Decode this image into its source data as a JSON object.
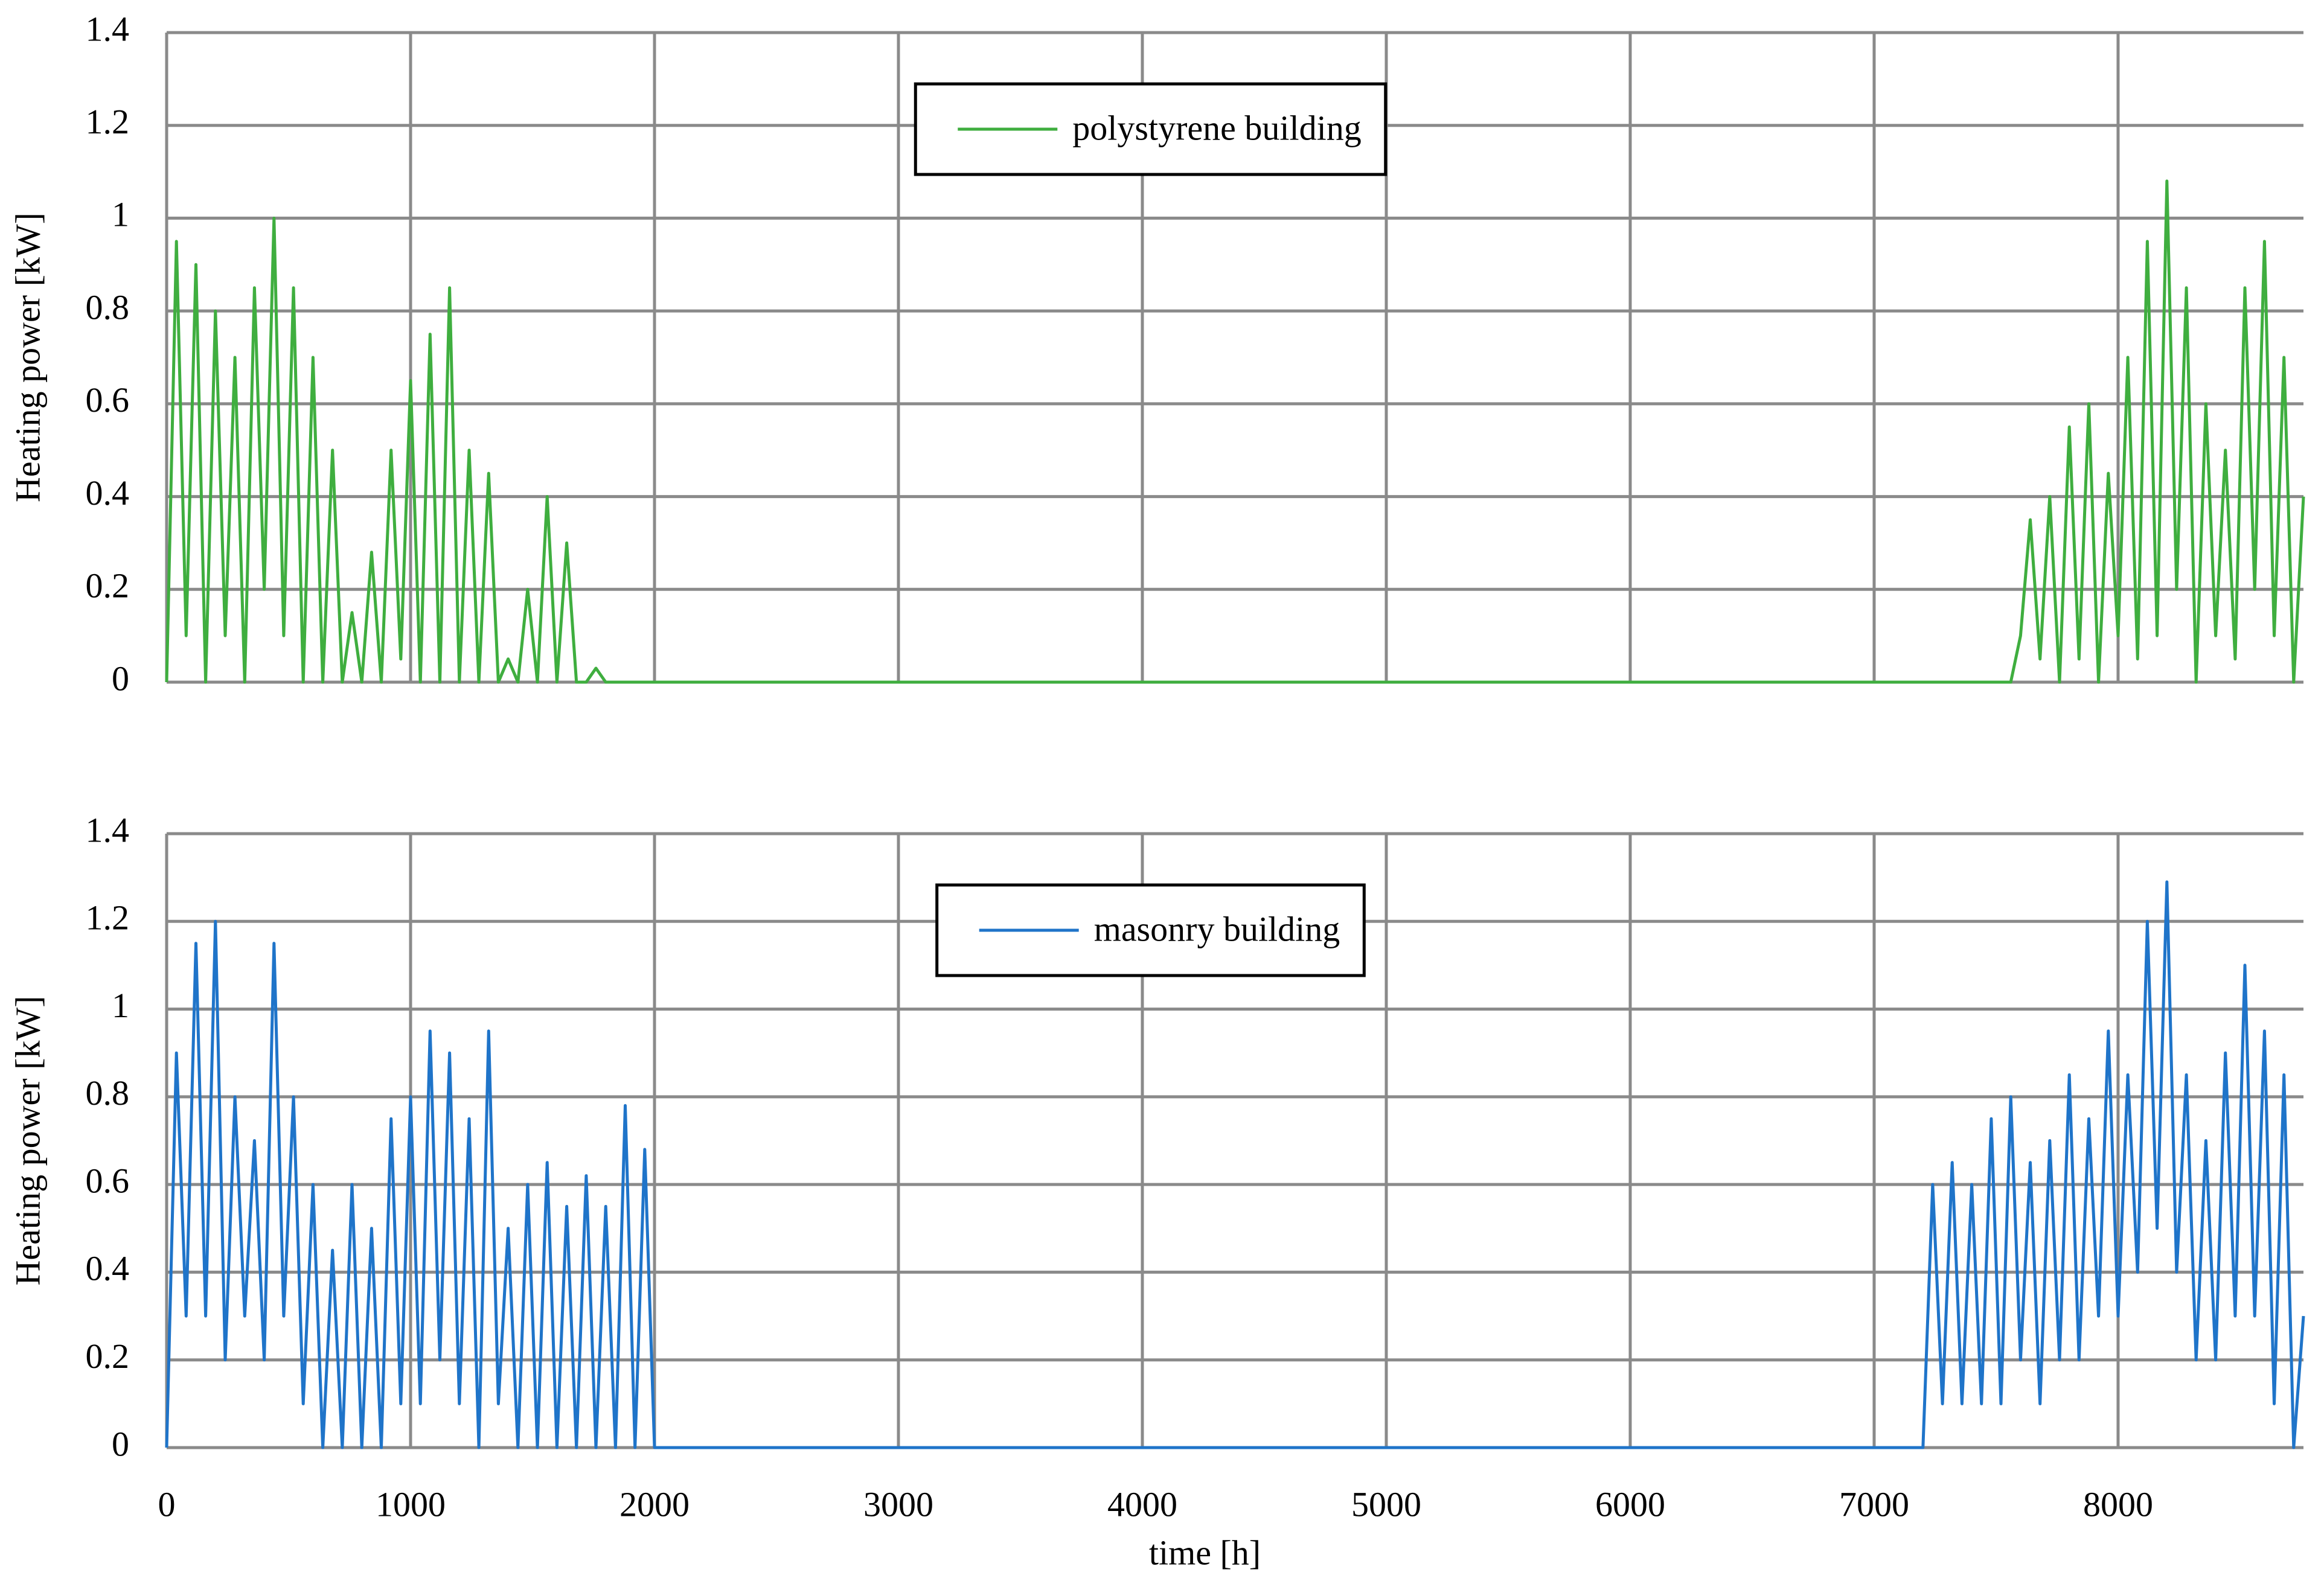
{
  "chart_data": [
    {
      "type": "line",
      "ylabel": "Heating power [kW]",
      "legend": "upper center",
      "grid": true,
      "show_xtick_labels": false,
      "xlim": [
        0,
        8760
      ],
      "ylim": [
        0,
        1.4
      ],
      "xticks": [
        0,
        1000,
        2000,
        3000,
        4000,
        5000,
        6000,
        7000,
        8000
      ],
      "yticks": [
        0,
        0.2,
        0.4,
        0.6,
        0.8,
        1,
        1.2,
        1.4
      ],
      "x": [
        0,
        40,
        80,
        120,
        160,
        200,
        240,
        280,
        320,
        360,
        400,
        440,
        480,
        520,
        560,
        600,
        640,
        680,
        720,
        760,
        800,
        840,
        880,
        920,
        960,
        1000,
        1040,
        1080,
        1120,
        1160,
        1200,
        1240,
        1280,
        1320,
        1360,
        1400,
        1440,
        1480,
        1520,
        1560,
        1600,
        1640,
        1680,
        1720,
        1760,
        1800,
        7560,
        7600,
        7640,
        7680,
        7720,
        7760,
        7800,
        7840,
        7880,
        7920,
        7960,
        8000,
        8040,
        8080,
        8120,
        8160,
        8200,
        8240,
        8280,
        8320,
        8360,
        8400,
        8440,
        8480,
        8520,
        8560,
        8600,
        8640,
        8680,
        8720,
        8760
      ],
      "series": [
        {
          "name": "polystyrene building",
          "color": "#3fae3f",
          "values": [
            0,
            0.95,
            0.1,
            0.9,
            0,
            0.8,
            0.1,
            0.7,
            0,
            0.85,
            0.2,
            1.0,
            0.1,
            0.85,
            0,
            0.7,
            0,
            0.5,
            0,
            0.15,
            0,
            0.28,
            0,
            0.5,
            0.05,
            0.65,
            0,
            0.75,
            0,
            0.85,
            0,
            0.5,
            0,
            0.45,
            0,
            0.05,
            0,
            0.2,
            0,
            0.4,
            0,
            0.3,
            0,
            0,
            0.03,
            0,
            0,
            0.1,
            0.35,
            0.05,
            0.4,
            0,
            0.55,
            0.05,
            0.6,
            0,
            0.45,
            0.1,
            0.7,
            0.05,
            0.95,
            0.1,
            1.08,
            0.2,
            0.85,
            0,
            0.6,
            0.1,
            0.5,
            0.05,
            0.85,
            0.2,
            0.95,
            0.1,
            0.7,
            0,
            0.4
          ]
        }
      ]
    },
    {
      "type": "line",
      "ylabel": "Heating power [kW]",
      "xlabel": "time [h]",
      "legend": "upper center",
      "grid": true,
      "show_xtick_labels": true,
      "xlim": [
        0,
        8760
      ],
      "ylim": [
        0,
        1.4
      ],
      "xticks": [
        0,
        1000,
        2000,
        3000,
        4000,
        5000,
        6000,
        7000,
        8000
      ],
      "yticks": [
        0,
        0.2,
        0.4,
        0.6,
        0.8,
        1,
        1.2,
        1.4
      ],
      "x": [
        0,
        40,
        80,
        120,
        160,
        200,
        240,
        280,
        320,
        360,
        400,
        440,
        480,
        520,
        560,
        600,
        640,
        680,
        720,
        760,
        800,
        840,
        880,
        920,
        960,
        1000,
        1040,
        1080,
        1120,
        1160,
        1200,
        1240,
        1280,
        1320,
        1360,
        1400,
        1440,
        1480,
        1520,
        1560,
        1600,
        1640,
        1680,
        1720,
        1760,
        1800,
        1840,
        1880,
        1920,
        1960,
        2000,
        7200,
        7240,
        7280,
        7320,
        7360,
        7400,
        7440,
        7480,
        7520,
        7560,
        7600,
        7640,
        7680,
        7720,
        7760,
        7800,
        7840,
        7880,
        7920,
        7960,
        8000,
        8040,
        8080,
        8120,
        8160,
        8200,
        8240,
        8280,
        8320,
        8360,
        8400,
        8440,
        8480,
        8520,
        8560,
        8600,
        8640,
        8680,
        8720,
        8760
      ],
      "series": [
        {
          "name": "masonry building",
          "color": "#1f74c9",
          "values": [
            0,
            0.9,
            0.3,
            1.15,
            0.3,
            1.2,
            0.2,
            0.8,
            0.3,
            0.7,
            0.2,
            1.15,
            0.3,
            0.8,
            0.1,
            0.6,
            0,
            0.45,
            0,
            0.6,
            0,
            0.5,
            0,
            0.75,
            0.1,
            0.8,
            0.1,
            0.95,
            0.2,
            0.9,
            0.1,
            0.75,
            0,
            0.95,
            0.1,
            0.5,
            0,
            0.6,
            0,
            0.65,
            0,
            0.55,
            0,
            0.62,
            0,
            0.55,
            0,
            0.78,
            0,
            0.68,
            0,
            0,
            0.6,
            0.1,
            0.65,
            0.1,
            0.6,
            0.1,
            0.75,
            0.1,
            0.8,
            0.2,
            0.65,
            0.1,
            0.7,
            0.2,
            0.85,
            0.2,
            0.75,
            0.3,
            0.95,
            0.3,
            0.85,
            0.4,
            1.2,
            0.5,
            1.29,
            0.4,
            0.85,
            0.2,
            0.7,
            0.2,
            0.9,
            0.3,
            1.1,
            0.3,
            0.95,
            0.1,
            0.85,
            0,
            0.3
          ]
        }
      ]
    }
  ]
}
